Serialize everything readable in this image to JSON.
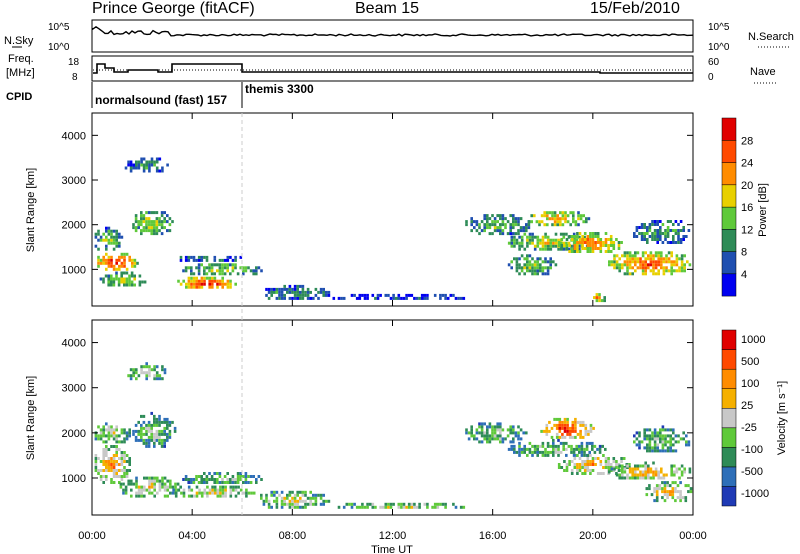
{
  "header": {
    "station": "Prince George (fitACF)",
    "beam": "Beam 15",
    "date": "15/Feb/2010"
  },
  "summary_panels": {
    "nsky": {
      "left_label": "N.Sky",
      "right_label": "N.Search",
      "left_ticks": [
        "10^5",
        "10^0"
      ],
      "right_ticks": [
        "10^5",
        "10^0"
      ]
    },
    "freq": {
      "left_label_line1": "Freq.",
      "left_label_line2": "[MHz]",
      "right_label": "Nave",
      "left_ticks": [
        "18",
        "8"
      ],
      "right_ticks": [
        "60",
        "0"
      ]
    },
    "cpid": {
      "label": "CPID",
      "segments": [
        {
          "name": "normalsound (fast) 157",
          "start_hour": 0
        },
        {
          "name": "themis 3300",
          "start_hour": 6.0
        }
      ]
    }
  },
  "chart_data": [
    {
      "type": "heatmap",
      "name": "power",
      "ylabel": "Slant Range [km]",
      "ylim": [
        180,
        4500
      ],
      "yticks": [
        "1000",
        "2000",
        "3000",
        "4000"
      ],
      "xlim_hours": [
        0,
        24
      ],
      "colorbar": {
        "label": "Power [dB]",
        "ticks": [
          "4",
          "8",
          "12",
          "16",
          "20",
          "24",
          "28"
        ],
        "colors": [
          "#0000f0",
          "#1f4fb0",
          "#2e8b57",
          "#5fc93a",
          "#e8d000",
          "#ff8c00",
          "#ff4a00",
          "#e00000"
        ]
      },
      "blobs": [
        {
          "t0": 0.0,
          "t1": 1.8,
          "r0": 900,
          "r1": 1350,
          "level": 0.95
        },
        {
          "t0": 0.0,
          "t1": 1.2,
          "r0": 1350,
          "r1": 1900,
          "level": 0.5
        },
        {
          "t0": 0.2,
          "t1": 2.2,
          "r0": 550,
          "r1": 900,
          "level": 0.6
        },
        {
          "t0": 1.5,
          "t1": 3.2,
          "r0": 1700,
          "r1": 2300,
          "level": 0.55
        },
        {
          "t0": 1.2,
          "t1": 3.0,
          "r0": 3100,
          "r1": 3500,
          "level": 0.35
        },
        {
          "t0": 3.3,
          "t1": 5.8,
          "r0": 500,
          "r1": 800,
          "level": 1.0
        },
        {
          "t0": 3.5,
          "t1": 6.8,
          "r0": 800,
          "r1": 1100,
          "level": 0.55
        },
        {
          "t0": 3.4,
          "t1": 6.0,
          "r0": 1100,
          "r1": 1300,
          "level": 0.3
        },
        {
          "t0": 6.5,
          "t1": 9.5,
          "r0": 250,
          "r1": 600,
          "level": 0.35
        },
        {
          "t0": 9.5,
          "t1": 15.0,
          "r0": 250,
          "r1": 420,
          "level": 0.2
        },
        {
          "t0": 14.8,
          "t1": 17.5,
          "r0": 1700,
          "r1": 2200,
          "level": 0.45
        },
        {
          "t0": 16.4,
          "t1": 20.0,
          "r0": 1350,
          "r1": 1800,
          "level": 0.6
        },
        {
          "t0": 17.3,
          "t1": 19.8,
          "r0": 1900,
          "r1": 2300,
          "level": 0.7
        },
        {
          "t0": 18.5,
          "t1": 21.2,
          "r0": 1300,
          "r1": 1800,
          "level": 0.8
        },
        {
          "t0": 20.5,
          "t1": 24.0,
          "r0": 800,
          "r1": 1400,
          "level": 0.85
        },
        {
          "t0": 21.5,
          "t1": 24.0,
          "r0": 1500,
          "r1": 2100,
          "level": 0.4
        },
        {
          "t0": 16.5,
          "t1": 18.5,
          "r0": 800,
          "r1": 1300,
          "level": 0.5
        },
        {
          "t0": 19.8,
          "t1": 20.5,
          "r0": 200,
          "r1": 450,
          "level": 0.75
        }
      ]
    },
    {
      "type": "heatmap",
      "name": "velocity",
      "ylabel": "Slant Range [km]",
      "ylim": [
        180,
        4500
      ],
      "yticks": [
        "1000",
        "2000",
        "3000",
        "4000"
      ],
      "xlim_hours": [
        0,
        24
      ],
      "xticks": [
        "00:00",
        "04:00",
        "08:00",
        "12:00",
        "16:00",
        "20:00",
        "00:00"
      ],
      "xlabel": "Time UT",
      "colorbar": {
        "label": "Velocity [m s⁻¹]",
        "ticks": [
          "1000",
          "500",
          "100",
          "25",
          "-25",
          "-100",
          "-500",
          "-1000"
        ],
        "colors": [
          "#1f3ab5",
          "#2e6fb8",
          "#2e8b57",
          "#5fc93a",
          "#c8c8c8",
          "#f5b000",
          "#ff8c00",
          "#ff4a00",
          "#e00000"
        ]
      },
      "blobs": [
        {
          "t0": 0.0,
          "t1": 1.5,
          "r0": 800,
          "r1": 1700,
          "level": 0.75
        },
        {
          "t0": 0.0,
          "t1": 1.5,
          "r0": 1700,
          "r1": 2200,
          "level": 0.55
        },
        {
          "t0": 1.0,
          "t1": 3.5,
          "r0": 500,
          "r1": 1000,
          "level": 0.6
        },
        {
          "t0": 1.5,
          "t1": 3.3,
          "r0": 1600,
          "r1": 2400,
          "level": 0.45
        },
        {
          "t0": 1.2,
          "t1": 3.0,
          "r0": 3100,
          "r1": 3500,
          "level": 0.5
        },
        {
          "t0": 3.0,
          "t1": 6.5,
          "r0": 500,
          "r1": 800,
          "level": 0.6
        },
        {
          "t0": 3.5,
          "t1": 6.8,
          "r0": 800,
          "r1": 1100,
          "level": 0.45
        },
        {
          "t0": 6.5,
          "t1": 9.5,
          "r0": 250,
          "r1": 700,
          "level": 0.55
        },
        {
          "t0": 9.5,
          "t1": 15.0,
          "r0": 250,
          "r1": 420,
          "level": 0.55
        },
        {
          "t0": 14.8,
          "t1": 17.3,
          "r0": 1700,
          "r1": 2200,
          "level": 0.45
        },
        {
          "t0": 16.5,
          "t1": 20.5,
          "r0": 1400,
          "r1": 1800,
          "level": 0.45
        },
        {
          "t0": 17.8,
          "t1": 20.0,
          "r0": 1800,
          "r1": 2300,
          "level": 0.95
        },
        {
          "t0": 18.5,
          "t1": 21.5,
          "r0": 1000,
          "r1": 1500,
          "level": 0.7
        },
        {
          "t0": 20.5,
          "t1": 24.0,
          "r0": 900,
          "r1": 1300,
          "level": 0.7
        },
        {
          "t0": 21.5,
          "t1": 24.0,
          "r0": 1500,
          "r1": 2100,
          "level": 0.45
        },
        {
          "t0": 22.0,
          "t1": 24.0,
          "r0": 400,
          "r1": 900,
          "level": 0.65
        }
      ]
    }
  ],
  "colors": {
    "marker_line": "#cccccc",
    "axis": "#000000"
  }
}
